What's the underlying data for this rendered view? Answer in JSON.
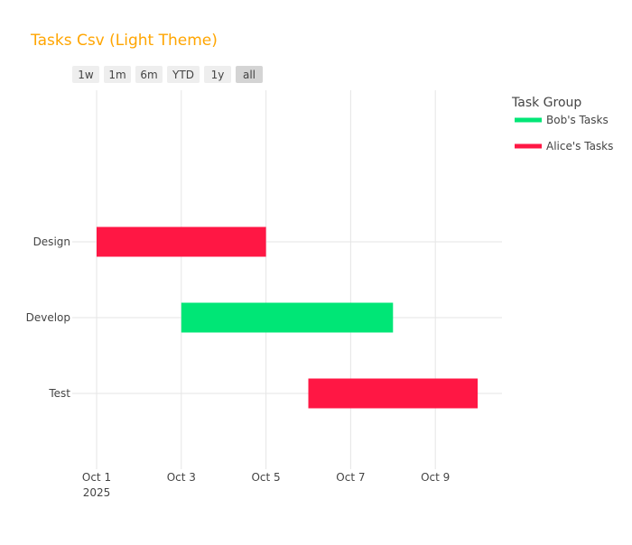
{
  "chart_data": {
    "type": "gantt",
    "title": "Tasks Csv (Light Theme)",
    "title_color": "#FFA500",
    "range_selector": {
      "buttons": [
        "1w",
        "1m",
        "6m",
        "YTD",
        "1y",
        "all"
      ],
      "active": "all"
    },
    "legend": {
      "title": "Task Group",
      "placement": "top-right",
      "entries": [
        {
          "name": "Bob's Tasks",
          "color": "#00E676"
        },
        {
          "name": "Alice's Tasks",
          "color": "#FF1744"
        }
      ]
    },
    "categories": [
      "Design",
      "Develop",
      "Test"
    ],
    "xaxis": {
      "range_days": [
        0,
        9.5
      ],
      "ticks": [
        {
          "day": 0,
          "label": "Oct 1",
          "sub": "2025"
        },
        {
          "day": 2,
          "label": "Oct 3"
        },
        {
          "day": 4,
          "label": "Oct 5"
        },
        {
          "day": 6,
          "label": "Oct 7"
        },
        {
          "day": 8,
          "label": "Oct 9"
        }
      ]
    },
    "tasks": [
      {
        "task": "Design",
        "start": "2025-10-01",
        "end": "2025-10-05",
        "start_day": 0,
        "end_day": 4,
        "group": "Alice's Tasks"
      },
      {
        "task": "Develop",
        "start": "2025-10-03",
        "end": "2025-10-08",
        "start_day": 2,
        "end_day": 7,
        "group": "Bob's Tasks"
      },
      {
        "task": "Test",
        "start": "2025-10-06",
        "end": "2025-10-10",
        "start_day": 5,
        "end_day": 9,
        "group": "Alice's Tasks"
      }
    ]
  }
}
